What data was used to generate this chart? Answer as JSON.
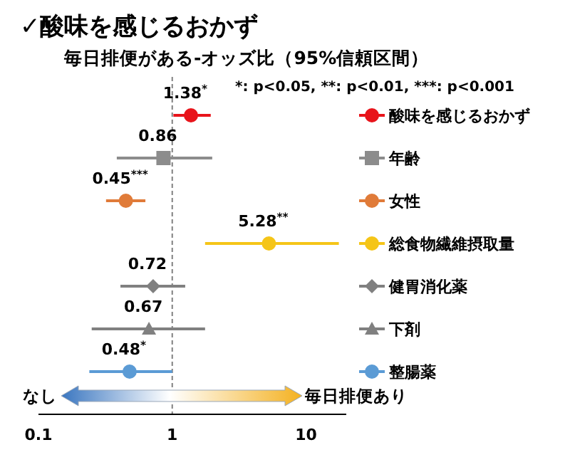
{
  "chart_data": {
    "type": "scatter",
    "title": "✓酸味を感じるおかず",
    "subtitle": "毎日排便がある-オッズ比（95%信頼区間）",
    "orientation": "horizontal",
    "log": "x",
    "categories": [
      null,
      null,
      null,
      null,
      null,
      null,
      null
    ],
    "xlim": [
      0.1,
      20
    ],
    "xticks": [
      0.1,
      1,
      10
    ],
    "grid": false,
    "legend": "right",
    "ref_lines": [
      {
        "axis": "x",
        "value": 1,
        "line_style": "dashed",
        "color": "#808080"
      }
    ],
    "annotations": [
      "*: p<0.05, **: p<0.01, ***: p<0.001",
      "なし",
      "毎日排便あり"
    ],
    "series": [
      {
        "name": "酸味を感じるおかず",
        "color": "#e8141b",
        "marker": "circle",
        "values": [
          1.38,
          null,
          null,
          null,
          null,
          null,
          null
        ],
        "errors": [
          [
            1.02,
            1.94
          ],
          null,
          null,
          null,
          null,
          null,
          null
        ],
        "value_labels": [
          "1.38$^{*}$",
          null,
          null,
          null,
          null,
          null,
          null
        ]
      },
      {
        "name": "年齢",
        "color": "#8c8c8c",
        "marker": "square",
        "values": [
          null,
          0.86,
          null,
          null,
          null,
          null,
          null
        ],
        "errors": [
          null,
          [
            0.385,
            1.99
          ],
          null,
          null,
          null,
          null,
          null
        ],
        "value_labels": [
          null,
          "0.86",
          null,
          null,
          null,
          null,
          null
        ]
      },
      {
        "name": "女性",
        "color": "#e07b39",
        "marker": "circle",
        "values": [
          null,
          null,
          0.45,
          null,
          null,
          null,
          null
        ],
        "errors": [
          null,
          null,
          [
            0.32,
            0.63
          ],
          null,
          null,
          null,
          null
        ],
        "value_labels": [
          null,
          null,
          "0.45$^{***}$",
          null,
          null,
          null,
          null
        ]
      },
      {
        "name": "総食物繊維摂取量",
        "color": "#f5c518",
        "marker": "circle",
        "values": [
          null,
          null,
          null,
          5.28,
          null,
          null,
          null
        ],
        "errors": [
          null,
          null,
          null,
          [
            1.76,
            17.6
          ],
          null,
          null,
          null
        ],
        "value_labels": [
          null,
          null,
          null,
          "5.28$^{**}$",
          null,
          null,
          null
        ]
      },
      {
        "name": "健胃消化薬",
        "color": "#808080",
        "marker": "diamond",
        "values": [
          null,
          null,
          null,
          null,
          0.72,
          null,
          null
        ],
        "errors": [
          null,
          null,
          null,
          null,
          [
            0.41,
            1.25
          ],
          null,
          null
        ],
        "value_labels": [
          null,
          null,
          null,
          null,
          "0.72",
          null,
          null
        ]
      },
      {
        "name": "下剤",
        "color": "#808080",
        "marker": "triangle",
        "values": [
          null,
          null,
          null,
          null,
          null,
          0.67,
          null
        ],
        "errors": [
          null,
          null,
          null,
          null,
          null,
          [
            0.25,
            1.76
          ],
          null
        ],
        "value_labels": [
          null,
          null,
          null,
          null,
          null,
          "0.67",
          null
        ]
      },
      {
        "name": "整腸薬",
        "color": "#5b9bd5",
        "marker": "circle",
        "values": [
          null,
          null,
          null,
          null,
          null,
          null,
          0.48
        ],
        "errors": [
          null,
          null,
          null,
          null,
          null,
          null,
          [
            0.24,
            1.0
          ]
        ],
        "value_labels": [
          null,
          null,
          null,
          null,
          null,
          null,
          "0.48$^{*}$"
        ]
      }
    ]
  }
}
